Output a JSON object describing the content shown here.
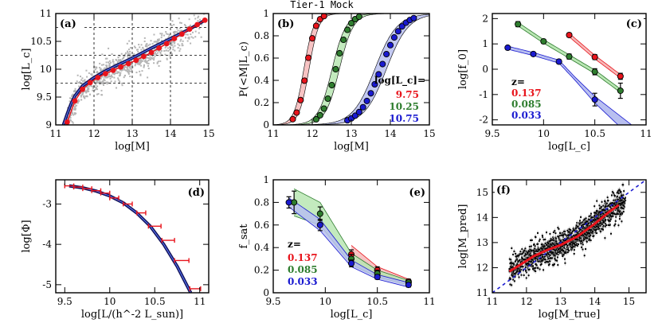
{
  "figure": {
    "title": "Tier-1 Mock"
  },
  "colors": {
    "red": "#e8141c",
    "green": "#2e7d2e",
    "blue": "#1a1ad0",
    "navy": "#14145a",
    "redband": "#f6b9b9",
    "greenband": "#b9e6b3",
    "blueband": "#b8bff0",
    "grey": "#b5b5b5"
  },
  "chart_data": [
    {
      "id": "a",
      "type": "scatter",
      "panel_label": "(a)",
      "xlabel": "log[M]",
      "ylabel": "log[L_c]",
      "xlim": [
        11,
        15
      ],
      "ylim": [
        9,
        11
      ],
      "xticks": [
        11,
        12,
        13,
        14,
        15
      ],
      "yticks": [
        9,
        9.5,
        10,
        10.5,
        11
      ],
      "dashed_x": [
        12,
        13,
        14
      ],
      "dashed_y": [
        9.75,
        10.25,
        10.75
      ],
      "cloud": {
        "x_range": [
          11.2,
          15
        ],
        "color": "grey"
      },
      "model_curve": {
        "x": [
          11.2,
          11.3,
          11.4,
          11.5,
          11.7,
          12,
          12.3,
          12.6,
          13,
          13.5,
          14,
          14.5,
          14.9
        ],
        "y": [
          9.0,
          9.2,
          9.38,
          9.52,
          9.7,
          9.85,
          9.97,
          10.07,
          10.2,
          10.38,
          10.55,
          10.72,
          10.88
        ]
      },
      "points": {
        "x": [
          11.3,
          11.5,
          11.7,
          11.9,
          12.1,
          12.3,
          12.5,
          12.7,
          12.9,
          13.1,
          13.3,
          13.5,
          13.7,
          13.9,
          14.1,
          14.3,
          14.5,
          14.7,
          14.9
        ],
        "y": [
          9.05,
          9.43,
          9.64,
          9.76,
          9.85,
          9.92,
          9.98,
          10.04,
          10.1,
          10.16,
          10.23,
          10.3,
          10.38,
          10.46,
          10.55,
          10.63,
          10.72,
          10.8,
          10.88
        ]
      }
    },
    {
      "id": "b",
      "type": "line",
      "panel_label": "(b)",
      "xlabel": "log[M]",
      "ylabel": "P(<M|L_c)",
      "xlim": [
        11,
        15
      ],
      "ylim": [
        0,
        1
      ],
      "xticks": [
        11,
        12,
        13,
        14,
        15
      ],
      "yticks": [
        0,
        0.2,
        0.4,
        0.6,
        0.8,
        1
      ],
      "legend_title": "log[L_c]=",
      "series": [
        {
          "name": "9.75",
          "color": "red",
          "center": 11.85,
          "width": 0.12,
          "x": [
            11.5,
            11.6,
            11.7,
            11.8,
            11.9,
            12.0,
            12.1,
            12.2,
            12.3
          ]
        },
        {
          "name": "10.25",
          "color": "green",
          "center": 12.6,
          "width": 0.17,
          "x": [
            12.1,
            12.2,
            12.3,
            12.4,
            12.5,
            12.6,
            12.7,
            12.8,
            12.9,
            13.0,
            13.1,
            13.2
          ]
        },
        {
          "name": "10.75",
          "color": "blue",
          "center": 13.75,
          "width": 0.27,
          "x": [
            12.9,
            13.0,
            13.1,
            13.2,
            13.3,
            13.4,
            13.5,
            13.6,
            13.7,
            13.8,
            13.9,
            14.0,
            14.1,
            14.2,
            14.3,
            14.4,
            14.5,
            14.6
          ]
        }
      ]
    },
    {
      "id": "c",
      "type": "line",
      "panel_label": "(c)",
      "xlabel": "log[L_c]",
      "ylabel": "log[f_0]",
      "xlim": [
        9.5,
        11
      ],
      "ylim": [
        -2.2,
        2.2
      ],
      "xticks": [
        9.5,
        10,
        10.5,
        11
      ],
      "yticks": [
        -2,
        -1,
        0,
        1,
        2
      ],
      "legend_title": "z=",
      "series": [
        {
          "name": "0.137",
          "color": "red",
          "x": [
            10.25,
            10.5,
            10.75
          ],
          "y": [
            1.35,
            0.48,
            -0.28
          ],
          "err": [
            0.08,
            0.1,
            0.12
          ]
        },
        {
          "name": "0.085",
          "color": "green",
          "x": [
            9.75,
            10.0,
            10.25,
            10.5,
            10.75
          ],
          "y": [
            1.78,
            1.1,
            0.5,
            -0.1,
            -0.85
          ],
          "err": [
            0.1,
            0.08,
            0.1,
            0.12,
            0.3
          ]
        },
        {
          "name": "0.033",
          "color": "blue",
          "x": [
            9.65,
            9.9,
            10.15,
            10.5
          ],
          "y": [
            0.85,
            0.6,
            0.3,
            -1.2
          ],
          "err": [
            0.06,
            0.06,
            0.08,
            0.25
          ]
        }
      ]
    },
    {
      "id": "d",
      "type": "line",
      "panel_label": "(d)",
      "xlabel": "log[L/(h^-2 L_sun)]",
      "ylabel": "log[Φ]",
      "xlim": [
        9.4,
        11.1
      ],
      "ylim": [
        -5.2,
        -2.4
      ],
      "xticks": [
        9.5,
        10,
        10.5,
        11
      ],
      "yticks": [
        -5,
        -4,
        -3
      ],
      "curve": {
        "x": [
          9.55,
          9.7,
          9.85,
          10.0,
          10.15,
          10.3,
          10.45,
          10.6,
          10.75,
          10.9
        ],
        "y": [
          -2.55,
          -2.6,
          -2.68,
          -2.8,
          -2.97,
          -3.22,
          -3.55,
          -4.0,
          -4.55,
          -5.2
        ]
      },
      "points": {
        "x": [
          9.55,
          9.65,
          9.75,
          9.85,
          9.95,
          10.05,
          10.2,
          10.35,
          10.5,
          10.65,
          10.8,
          10.95
        ],
        "y": [
          -2.55,
          -2.58,
          -2.62,
          -2.67,
          -2.73,
          -2.85,
          -3.0,
          -3.22,
          -3.55,
          -3.9,
          -4.4,
          -5.1
        ],
        "xerr": [
          0.05,
          0.05,
          0.05,
          0.05,
          0.05,
          0.05,
          0.05,
          0.05,
          0.07,
          0.07,
          0.08,
          0.06
        ]
      }
    },
    {
      "id": "e",
      "type": "line",
      "panel_label": "(e)",
      "xlabel": "log[L_c]",
      "ylabel": "f_sat",
      "xlim": [
        9.5,
        11
      ],
      "ylim": [
        0,
        1
      ],
      "xticks": [
        9.5,
        10,
        10.5,
        11
      ],
      "yticks": [
        0,
        0.2,
        0.4,
        0.6,
        0.8,
        1
      ],
      "legend_title": "z=",
      "series": [
        {
          "name": "0.137",
          "color": "red",
          "x": [
            10.25,
            10.5,
            10.8
          ],
          "y": [
            0.34,
            0.2,
            0.1
          ],
          "err": [
            0.04,
            0.03,
            0.02
          ],
          "band": [
            0.08,
            0.03,
            0.02
          ]
        },
        {
          "name": "0.085",
          "color": "green",
          "x": [
            9.7,
            9.95,
            10.25,
            10.5,
            10.8
          ],
          "y": [
            0.8,
            0.7,
            0.3,
            0.17,
            0.09
          ],
          "err": [
            0.1,
            0.06,
            0.04,
            0.03,
            0.02
          ],
          "band": [
            0.12,
            0.1,
            0.05,
            0.03,
            0.02
          ]
        },
        {
          "name": "0.033",
          "color": "blue",
          "x": [
            9.65,
            9.95,
            10.25,
            10.5,
            10.8
          ],
          "y": [
            0.8,
            0.6,
            0.26,
            0.14,
            0.07
          ],
          "err": [
            0.05,
            0.05,
            0.03,
            0.02,
            0.02
          ],
          "band": [
            0.04,
            0.05,
            0.03,
            0.02,
            0.02
          ]
        }
      ]
    },
    {
      "id": "f",
      "type": "scatter",
      "panel_label": "(f)",
      "xlabel": "log[M_true]",
      "ylabel": "log[M_pred]",
      "xlim": [
        11,
        15.5
      ],
      "ylim": [
        11,
        15.5
      ],
      "xticks": [
        11,
        12,
        13,
        14,
        15
      ],
      "yticks": [
        11,
        12,
        13,
        14,
        15
      ],
      "fit": {
        "x": [
          11.5,
          11.8,
          12.2,
          12.6,
          13.0,
          13.5,
          14.0,
          14.4,
          14.7
        ],
        "y": [
          11.85,
          12.1,
          12.45,
          12.7,
          12.9,
          13.25,
          13.75,
          14.2,
          14.5
        ]
      }
    }
  ]
}
